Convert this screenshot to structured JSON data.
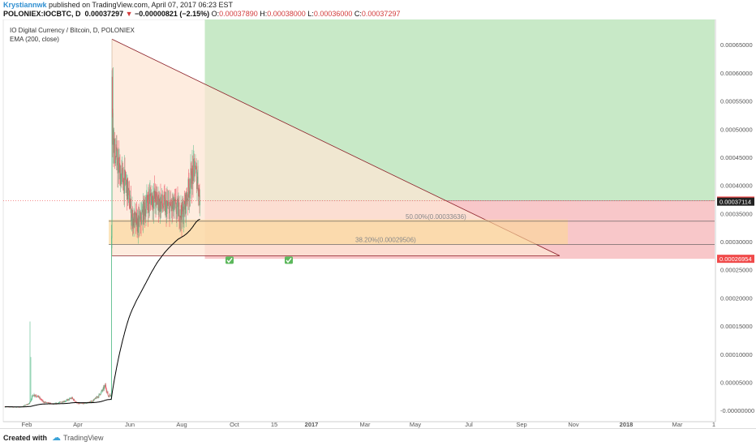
{
  "header": {
    "author": "Krystiannwk",
    "published": "published on TradingView.com, April 07, 2017 06:23 EST",
    "symbol": "POLONIEX:IOCBTC, D",
    "last": "0.00037297",
    "arrow": "▼",
    "change": "−0.00000821 (−2.15%)",
    "o_label": "O:",
    "o_value": "0.00037890",
    "h_label": "H:",
    "h_value": "0.00038000",
    "l_label": "L:",
    "l_value": "0.00036000",
    "c_label": "C:",
    "c_value": "0.00037297"
  },
  "legend": {
    "line1": "IO Digital Currency / Bitcoin, D, POLONIEX",
    "line2": "EMA (200, close)"
  },
  "footer": {
    "created": "Created with",
    "brand": "TradingView"
  },
  "colors": {
    "up": "#53b987",
    "down": "#eb4d5c",
    "ema": "#000000",
    "profit_zone": "#c8e9c7",
    "stop_zone": "#f8c7c9",
    "triangle_fill": "#fde6d4",
    "triangle_line": "#8a1e27",
    "fib_zone": "#fbd79a",
    "price_tag": "#f04a4a"
  },
  "chart_data": {
    "type": "candlestick",
    "title": "IO Digital Currency / Bitcoin, D, POLONIEX",
    "indicator": "EMA (200, close)",
    "x_ticks": [
      "Feb",
      "Apr",
      "Jun",
      "Aug",
      "Oct",
      "15",
      "2017",
      "Mar",
      "May",
      "Jul",
      "Sep",
      "Nov",
      "2018",
      "Mar",
      "1"
    ],
    "y_ticks": [
      "0.00065000",
      "0.00060000",
      "0.00055000",
      "0.00050000",
      "0.00045000",
      "0.00040000",
      "0.00035000",
      "0.00030000",
      "0.00025000",
      "0.00020000",
      "0.00015000",
      "0.00010000",
      "0.00005000",
      "-0.00000000"
    ],
    "ylim": [
      -2e-05,
      0.000695
    ],
    "price_tags": [
      {
        "label": "0.00037297",
        "value": 0.00037297,
        "color": "#f04a4a"
      },
      {
        "label": "0.00037114",
        "value": 0.00037114,
        "color": "#222222"
      },
      {
        "label": "0.00026954",
        "value": 0.00026954,
        "color": "#f04a4a"
      }
    ],
    "fib_levels": [
      {
        "label": "50.00%(0.00033636)",
        "value": 0.00033636
      },
      {
        "label": "38.20%(0.00029506)",
        "value": 0.00029506
      }
    ],
    "triangle": {
      "top": 0.00066,
      "base": 0.000275
    },
    "checkmarks": 2,
    "trend_anchors": [
      {
        "index": 0,
        "value": 6.5e-06
      },
      {
        "index": 20,
        "value": 6e-06
      },
      {
        "index": 40,
        "value": 6e-06
      },
      {
        "index": 60,
        "value": 1.2e-05
      },
      {
        "index": 70,
        "value": 2.8e-05
      },
      {
        "index": 80,
        "value": 2.6e-05
      },
      {
        "index": 95,
        "value": 1.5e-05
      },
      {
        "index": 120,
        "value": 1.1e-05
      },
      {
        "index": 150,
        "value": 1.7e-05
      },
      {
        "index": 165,
        "value": 2.2e-05
      },
      {
        "index": 180,
        "value": 1.2e-05
      },
      {
        "index": 200,
        "value": 1.3e-05
      },
      {
        "index": 215,
        "value": 1.6e-05
      },
      {
        "index": 230,
        "value": 2.5e-05
      },
      {
        "index": 240,
        "value": 3.5e-05
      },
      {
        "index": 248,
        "value": 4.4e-05
      },
      {
        "index": 255,
        "value": 2.5e-05
      },
      {
        "index": 262,
        "value": 2.9e-05
      },
      {
        "index": 264,
        "value": 0.00058
      },
      {
        "index": 266,
        "value": 0.0005
      },
      {
        "index": 270,
        "value": 0.00046
      },
      {
        "index": 285,
        "value": 0.00042
      },
      {
        "index": 300,
        "value": 0.0004
      },
      {
        "index": 315,
        "value": 0.00034
      },
      {
        "index": 330,
        "value": 0.00033
      },
      {
        "index": 345,
        "value": 0.00036
      },
      {
        "index": 360,
        "value": 0.00038
      },
      {
        "index": 380,
        "value": 0.00037
      },
      {
        "index": 400,
        "value": 0.00036
      },
      {
        "index": 420,
        "value": 0.00036
      },
      {
        "index": 440,
        "value": 0.00035
      },
      {
        "index": 458,
        "value": 0.00041
      },
      {
        "index": 468,
        "value": 0.00043
      },
      {
        "index": 475,
        "value": 0.00041
      },
      {
        "index": 481,
        "value": 0.00037297
      }
    ]
  }
}
